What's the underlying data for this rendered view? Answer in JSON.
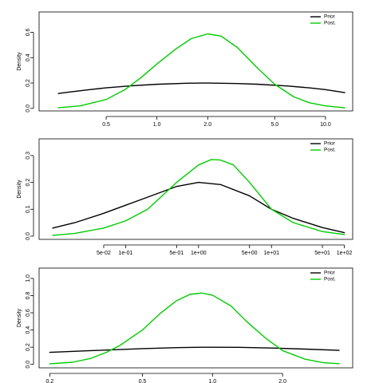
{
  "chart_data": [
    {
      "type": "line",
      "xscale": "log",
      "xlim": [
        0.2,
        14.5
      ],
      "ylim": [
        -0.02,
        0.76
      ],
      "ylabel": "Density",
      "yticks": [
        0.0,
        0.2,
        0.4,
        0.6
      ],
      "ytick_labels": [
        "0.0",
        "0.2",
        "0.4",
        "0.6"
      ],
      "xticks": [
        0.5,
        1.0,
        2.0,
        5.0,
        10.0
      ],
      "xtick_labels": [
        "0.5",
        "1.0",
        "2.0",
        "5.0",
        "10.0"
      ],
      "legend": "top-right",
      "series": [
        {
          "name": "Prior",
          "color": "#000000",
          "x": [
            0.26,
            0.3,
            0.4,
            0.5,
            0.7,
            1.0,
            1.5,
            2.0,
            3.0,
            4.0,
            6.0,
            8.0,
            10.0,
            13.0
          ],
          "y": [
            0.117,
            0.128,
            0.148,
            0.162,
            0.178,
            0.19,
            0.198,
            0.2,
            0.196,
            0.19,
            0.176,
            0.162,
            0.148,
            0.124
          ]
        },
        {
          "name": "Post.",
          "color": "#00cc00",
          "x": [
            0.26,
            0.35,
            0.5,
            0.65,
            0.8,
            1.0,
            1.3,
            1.6,
            2.0,
            2.4,
            3.0,
            4.0,
            5.0,
            6.5,
            8.0,
            10.0,
            13.0
          ],
          "y": [
            0.005,
            0.02,
            0.07,
            0.15,
            0.24,
            0.35,
            0.47,
            0.55,
            0.587,
            0.57,
            0.48,
            0.31,
            0.19,
            0.09,
            0.045,
            0.02,
            0.005
          ]
        }
      ]
    },
    {
      "type": "line",
      "xscale": "log",
      "xlim": [
        0.0065,
        130
      ],
      "ylim": [
        -0.012,
        0.362
      ],
      "ylabel": "Density",
      "yticks": [
        0.0,
        0.1,
        0.2,
        0.3
      ],
      "ytick_labels": [
        "0.0",
        "0.1",
        "0.2",
        "0.3"
      ],
      "xticks": [
        0.05,
        0.1,
        0.5,
        1,
        5,
        10,
        50,
        100
      ],
      "xtick_labels": [
        "5e-02",
        "1e-01",
        "5e-01",
        "1e+00",
        "5e+00",
        "1e+01",
        "5e+01",
        "1e+02"
      ],
      "legend": "top-right",
      "series": [
        {
          "name": "Prior",
          "color": "#000000",
          "x": [
            0.01,
            0.02,
            0.05,
            0.1,
            0.2,
            0.5,
            1.0,
            2.0,
            5.0,
            10,
            20,
            50,
            100
          ],
          "y": [
            0.03,
            0.05,
            0.085,
            0.115,
            0.145,
            0.185,
            0.2,
            0.192,
            0.15,
            0.1,
            0.066,
            0.032,
            0.013
          ]
        },
        {
          "name": "Post.",
          "color": "#00cc00",
          "x": [
            0.01,
            0.02,
            0.05,
            0.1,
            0.2,
            0.5,
            1.0,
            1.5,
            2.0,
            3.0,
            5.0,
            10,
            20,
            50,
            100
          ],
          "y": [
            0.003,
            0.01,
            0.03,
            0.057,
            0.1,
            0.2,
            0.265,
            0.285,
            0.283,
            0.265,
            0.2,
            0.1,
            0.05,
            0.017,
            0.006
          ]
        }
      ]
    },
    {
      "type": "line",
      "xscale": "log",
      "xlim": [
        0.18,
        4.0
      ],
      "ylim": [
        -0.04,
        1.12
      ],
      "ylabel": "Density",
      "yticks": [
        0.0,
        0.2,
        0.4,
        0.6,
        0.8,
        1.0
      ],
      "ytick_labels": [
        "0.0",
        "0.2",
        "0.4",
        "0.6",
        "0.8",
        "1.0"
      ],
      "xticks": [
        0.2,
        0.5,
        1.0,
        2.0
      ],
      "xtick_labels": [
        "0.2",
        "0.5",
        "1.0",
        "2.0"
      ],
      "legend": "top-right",
      "series": [
        {
          "name": "Prior",
          "color": "#000000",
          "x": [
            0.2,
            0.3,
            0.5,
            0.7,
            0.9,
            1.0,
            1.3,
            1.8,
            2.5,
            3.5
          ],
          "y": [
            0.14,
            0.16,
            0.183,
            0.195,
            0.2,
            0.2,
            0.198,
            0.19,
            0.178,
            0.164
          ]
        },
        {
          "name": "Post.",
          "color": "#00cc00",
          "x": [
            0.2,
            0.25,
            0.3,
            0.35,
            0.4,
            0.5,
            0.6,
            0.7,
            0.8,
            0.9,
            1.0,
            1.2,
            1.4,
            1.7,
            2.0,
            2.5,
            3.0,
            3.5
          ],
          "y": [
            0.007,
            0.025,
            0.07,
            0.14,
            0.22,
            0.4,
            0.6,
            0.74,
            0.815,
            0.83,
            0.805,
            0.68,
            0.5,
            0.3,
            0.16,
            0.06,
            0.02,
            0.008
          ]
        }
      ]
    }
  ]
}
